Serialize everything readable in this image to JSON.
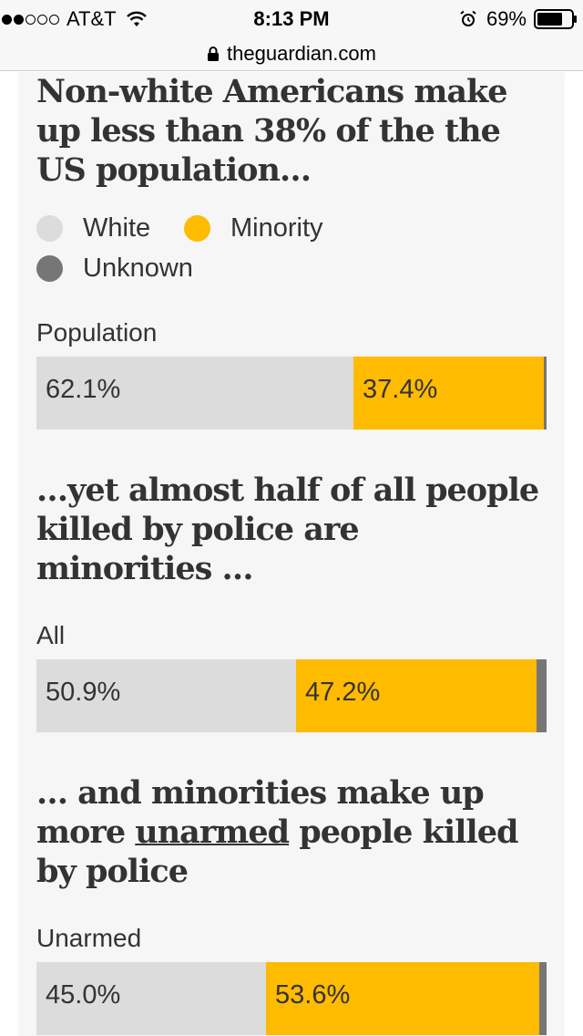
{
  "status_bar": {
    "carrier": "AT&T",
    "time": "8:13 PM",
    "battery": "69%"
  },
  "url_bar": {
    "domain": "theguardian.com"
  },
  "colors": {
    "white": "#dcdcdc",
    "minority": "#ffbb00",
    "unknown": "#767676",
    "background": "#f6f6f6",
    "text": "#333333"
  },
  "headlines": {
    "h1": [
      "Non-white Americans make",
      "up less than 38% of the the",
      "US population…"
    ],
    "h2": [
      "…yet almost half of all people",
      "killed by police are",
      "minorities …"
    ],
    "h3_line1": "… and minorities make up",
    "h3_line2_pre": "more ",
    "h3_line2_underlined": "unarmed",
    "h3_line2_post": " people killed",
    "h3_line3": "by police"
  },
  "legend": {
    "white": "White",
    "minority": "Minority",
    "unknown": "Unknown"
  },
  "chart_data": {
    "type": "bar",
    "orientation": "horizontal-stacked",
    "categories": [
      "Population",
      "All",
      "Unarmed"
    ],
    "series": [
      {
        "name": "White",
        "values": [
          62.1,
          50.9,
          45.0
        ],
        "labels": [
          "62.1%",
          "50.9%",
          "45.0%"
        ]
      },
      {
        "name": "Minority",
        "values": [
          37.4,
          47.2,
          53.6
        ],
        "labels": [
          "37.4%",
          "47.2%",
          "53.6%"
        ]
      },
      {
        "name": "Unknown",
        "values": [
          0.5,
          1.9,
          1.4
        ],
        "labels": [
          "",
          "",
          ""
        ]
      }
    ],
    "xlim": [
      0,
      100
    ]
  }
}
